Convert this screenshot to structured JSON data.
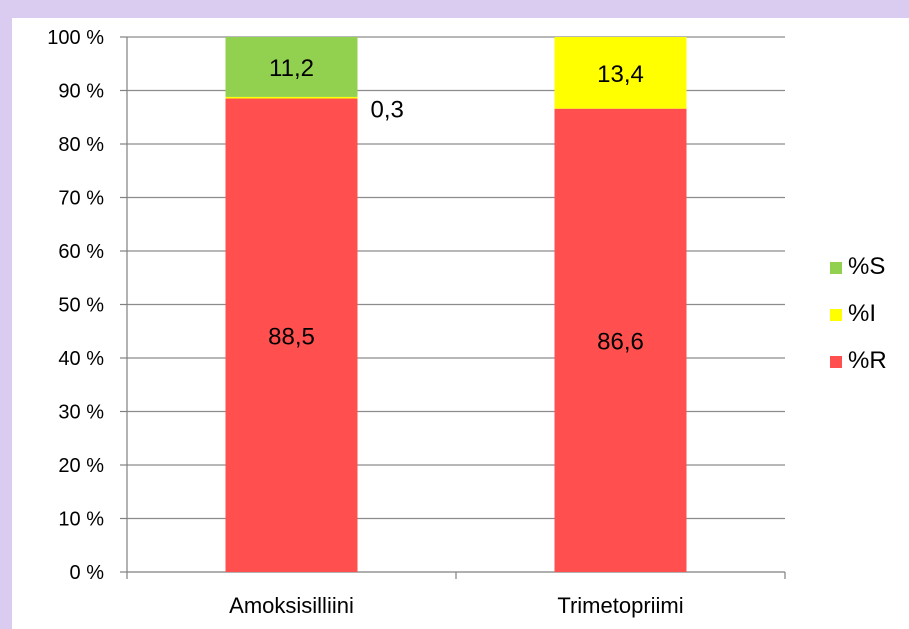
{
  "chart_data": {
    "type": "bar",
    "stacked": true,
    "percent_stacked": true,
    "categories": [
      "Amoksisilliini",
      "Trimetopriimi"
    ],
    "series": [
      {
        "name": "%R",
        "values": [
          88.5,
          86.6
        ],
        "labels": [
          "88,5",
          "86,6"
        ],
        "color": "#ff4f4f"
      },
      {
        "name": "%I",
        "values": [
          0.3,
          13.4
        ],
        "labels": [
          "0,3",
          "13,4"
        ],
        "color": "#ffff00"
      },
      {
        "name": "%S",
        "values": [
          11.2,
          0
        ],
        "labels": [
          "11,2",
          ""
        ],
        "color": "#92d050"
      }
    ],
    "legend_order": [
      "%S",
      "%I",
      "%R"
    ],
    "yticks": [
      "0 %",
      "10 %",
      "20 %",
      "30 %",
      "40 %",
      "50 %",
      "60 %",
      "70 %",
      "80 %",
      "90 %",
      "100 %"
    ],
    "ylim": [
      0,
      100
    ],
    "grid": true,
    "legend_position": "right",
    "colors": {
      "background": "#d9ccf0",
      "grid": "#8c8c8c",
      "axis": "#808080"
    }
  }
}
